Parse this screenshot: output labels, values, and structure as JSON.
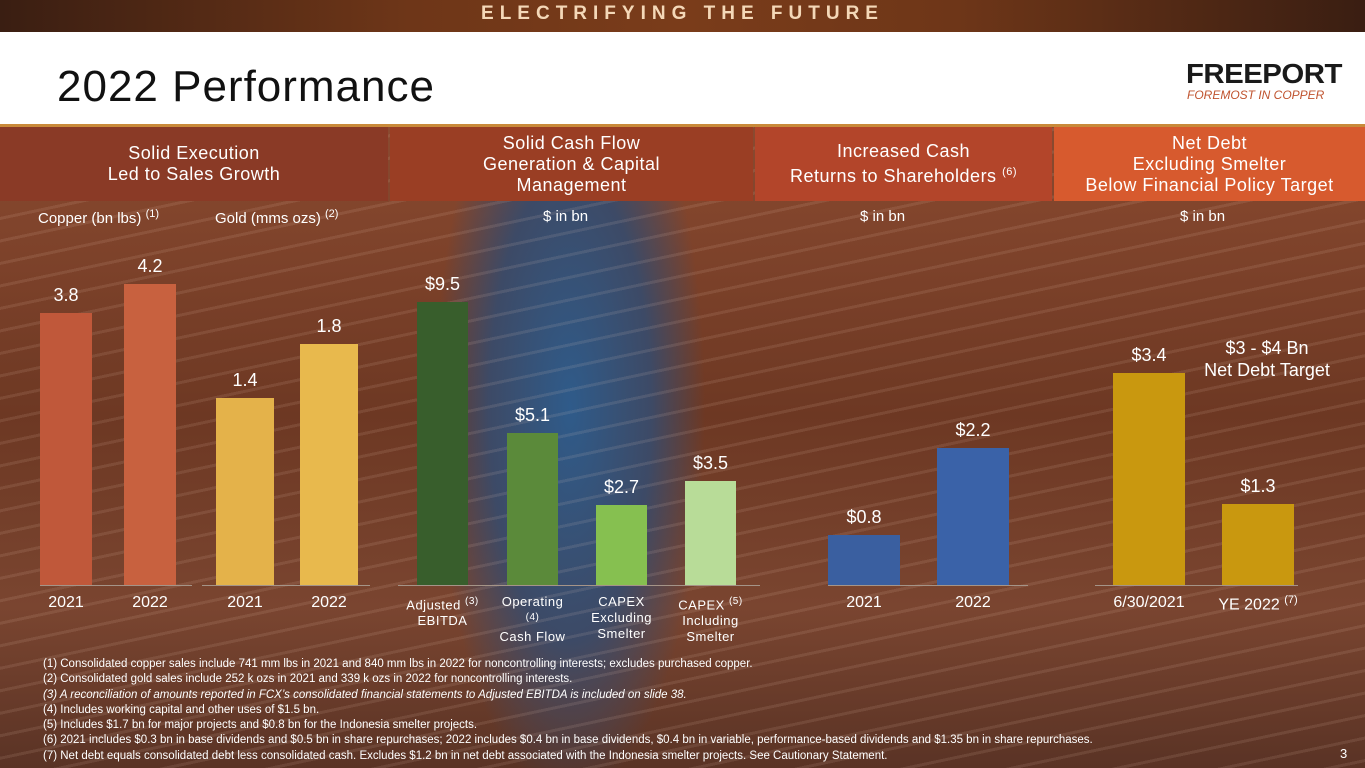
{
  "banner": "ELECTRIFYING THE FUTURE",
  "title": "2022 Performance",
  "logo": {
    "name": "FREEPORT",
    "tagline": "FOREMOST IN COPPER"
  },
  "sections": [
    {
      "line1": "Solid Execution",
      "line2": "Led to Sales Growth"
    },
    {
      "line1": "Solid Cash Flow",
      "line2": "Generation & Capital",
      "line3": "Management"
    },
    {
      "line1": "Increased Cash",
      "line2": "Returns to Shareholders",
      "note": "(6)"
    },
    {
      "line1": "Net Debt",
      "line2": "Excluding Smelter",
      "line3": "Below Financial Policy Target"
    }
  ],
  "units": {
    "copper": "Copper (bn lbs)",
    "copper_note": "(1)",
    "gold": "Gold (mms ozs)",
    "gold_note": "(2)",
    "cash_flow": "$ in bn",
    "returns": "$ in bn",
    "net_debt": "$ in bn"
  },
  "target_label": {
    "line1": "$3 - $4 Bn",
    "line2": "Net Debt Target"
  },
  "chart_data": [
    {
      "type": "bar",
      "title": "Copper (bn lbs)",
      "categories": [
        "2021",
        "2022"
      ],
      "values": [
        3.8,
        4.2
      ],
      "labels": [
        "3.8",
        "4.2"
      ],
      "colors": [
        "#c0583a",
        "#c8613f"
      ]
    },
    {
      "type": "bar",
      "title": "Gold (mms ozs)",
      "categories": [
        "2021",
        "2022"
      ],
      "values": [
        1.4,
        1.8
      ],
      "labels": [
        "1.4",
        "1.8"
      ],
      "colors": [
        "#e4b24a",
        "#e8b94d"
      ]
    },
    {
      "type": "bar",
      "title": "$ in bn",
      "categories": [
        "Adjusted EBITDA",
        "Operating Cash Flow",
        "CAPEX Excluding Smelter",
        "CAPEX Including Smelter"
      ],
      "notes": [
        "(3)",
        "(4)",
        "",
        "(5)"
      ],
      "values": [
        9.5,
        5.1,
        2.7,
        3.5
      ],
      "labels": [
        "$9.5",
        "$5.1",
        "$2.7",
        "$3.5"
      ],
      "colors": [
        "#385e2c",
        "#5b8a3a",
        "#86c050",
        "#b8dc98"
      ]
    },
    {
      "type": "bar",
      "title": "$ in bn",
      "categories": [
        "2021",
        "2022"
      ],
      "values": [
        0.8,
        2.2
      ],
      "labels": [
        "$0.8",
        "$2.2"
      ],
      "colors": [
        "#3a5fa0",
        "#3a62a8"
      ]
    },
    {
      "type": "bar",
      "title": "$ in bn",
      "categories": [
        "6/30/2021",
        "YE 2022"
      ],
      "notes": [
        "",
        "(7)"
      ],
      "values": [
        3.4,
        1.3
      ],
      "labels": [
        "$3.4",
        "$1.3"
      ],
      "colors": [
        "#c9980f",
        "#c9980f"
      ]
    }
  ],
  "footnotes": [
    "(1) Consolidated copper sales include 741 mm lbs in 2021 and 840 mm lbs in 2022 for noncontrolling interests; excludes purchased copper.",
    "(2) Consolidated gold sales include 252 k ozs in 2021 and 339 k ozs in 2022 for noncontrolling interests.",
    "(3) A reconciliation of amounts reported in FCX’s consolidated financial statements to Adjusted EBITDA is included on slide 38.",
    "(4) Includes working capital and other uses of $1.5 bn.",
    "(5) Includes $1.7 bn for major projects and $0.8 bn for the Indonesia smelter projects.",
    "(6) 2021 includes $0.3 bn in base dividends and $0.5 bn in share repurchases; 2022 includes $0.4 bn in base dividends, $0.4 bn in variable, performance-based dividends and $1.35 bn in share repurchases.",
    "(7) Net debt equals consolidated debt less consolidated cash. Excludes $1.2 bn in net debt associated with the Indonesia smelter projects. See Cautionary Statement."
  ],
  "page_number": "3"
}
